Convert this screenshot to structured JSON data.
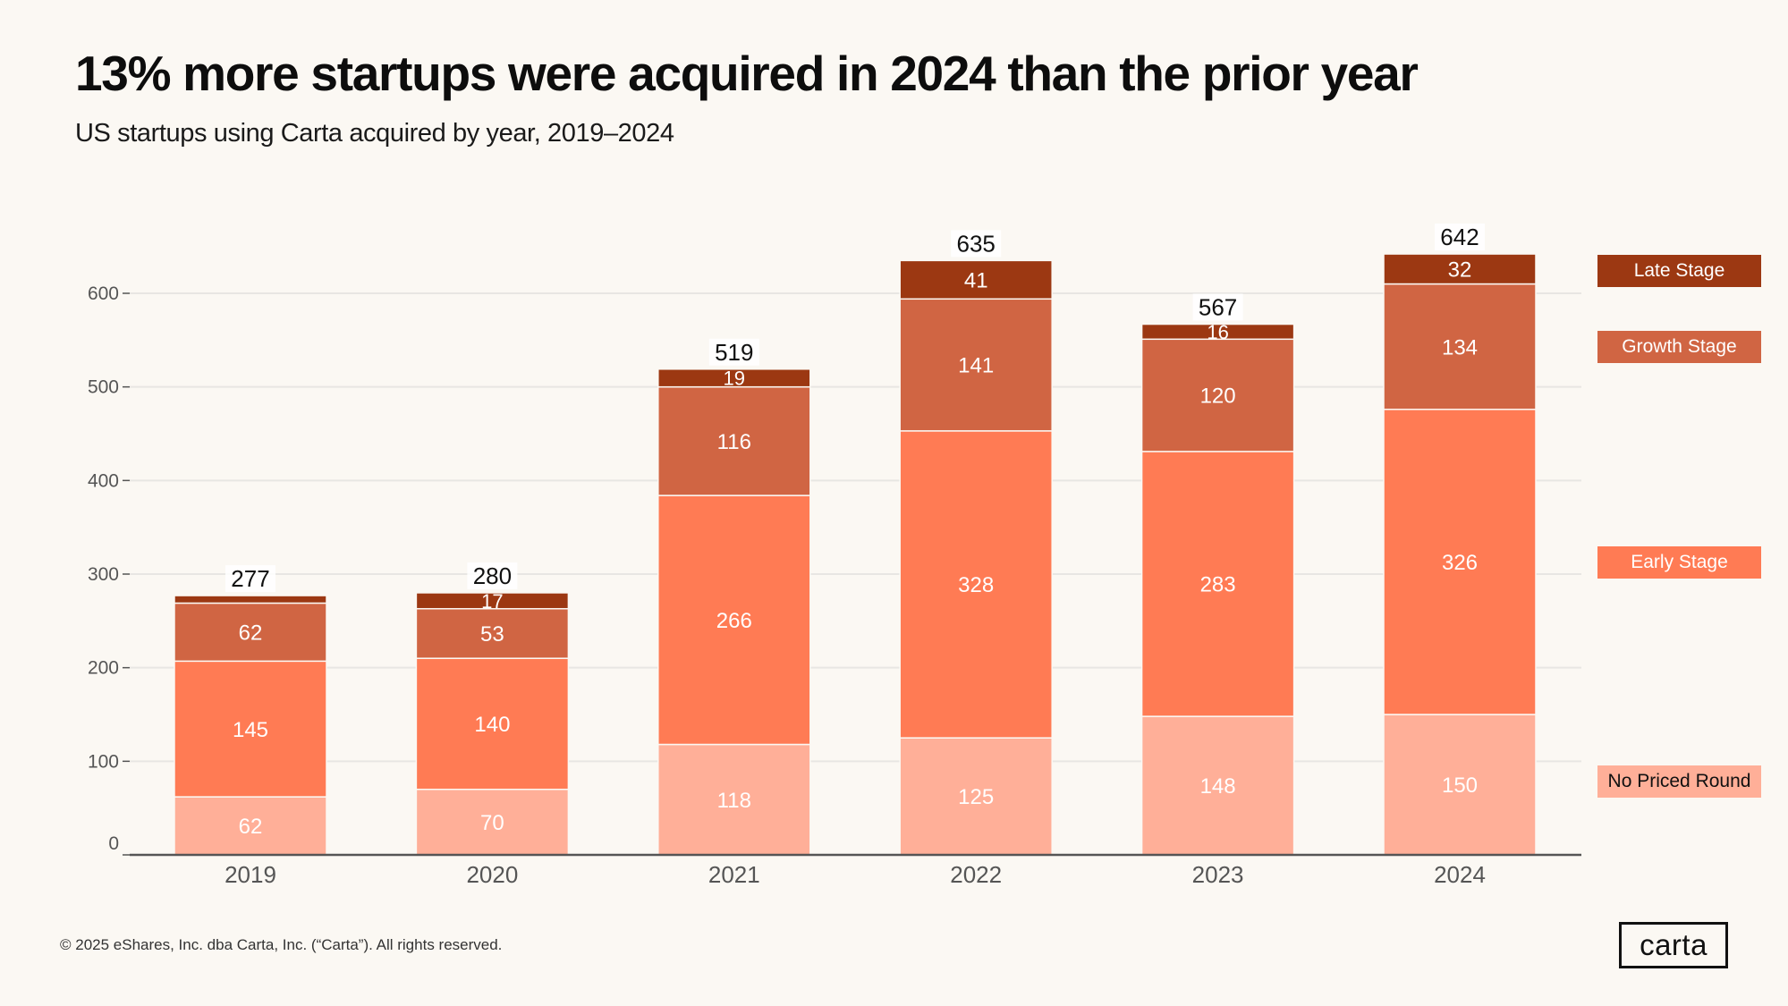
{
  "header": {
    "title": "13% more startups were acquired in 2024 than the prior year",
    "subtitle": "US startups using Carta acquired by year, 2019–2024"
  },
  "legend": [
    {
      "label": "Late Stage",
      "color": "#9C3812",
      "text_color": "#FFFFFF"
    },
    {
      "label": "Growth Stage",
      "color": "#D06543",
      "text_color": "#FFFFFF"
    },
    {
      "label": "Early Stage",
      "color": "#FF7B54",
      "text_color": "#FFFFFF"
    },
    {
      "label": "No Priced Round",
      "color": "#FFAF98",
      "text_color": "#111111"
    }
  ],
  "footer": {
    "copyright": "© 2025 eShares, Inc. dba Carta, Inc. (“Carta”). All rights reserved.",
    "logo": "carta"
  },
  "chart_data": {
    "type": "bar",
    "stacked": true,
    "title": "13% more startups were acquired in 2024 than the prior year",
    "subtitle": "US startups using Carta acquired by year, 2019–2024",
    "xlabel": "",
    "ylabel": "",
    "categories": [
      "2019",
      "2020",
      "2021",
      "2022",
      "2023",
      "2024"
    ],
    "series": [
      {
        "name": "No Priced Round",
        "color": "#FFAF98",
        "values": [
          62,
          70,
          118,
          125,
          148,
          150
        ],
        "show_labels": [
          true,
          true,
          true,
          true,
          true,
          true
        ]
      },
      {
        "name": "Early Stage",
        "color": "#FF7B54",
        "values": [
          145,
          140,
          266,
          328,
          283,
          326
        ],
        "show_labels": [
          true,
          true,
          true,
          true,
          true,
          true
        ]
      },
      {
        "name": "Growth Stage",
        "color": "#D06543",
        "values": [
          62,
          53,
          116,
          141,
          120,
          134
        ],
        "show_labels": [
          true,
          true,
          true,
          true,
          true,
          true
        ]
      },
      {
        "name": "Late Stage",
        "color": "#9C3812",
        "values": [
          8,
          17,
          19,
          41,
          16,
          32
        ],
        "show_labels": [
          false,
          true,
          true,
          true,
          true,
          true
        ]
      }
    ],
    "totals": [
      277,
      280,
      519,
      635,
      567,
      642
    ],
    "yticks": [
      0,
      100,
      200,
      300,
      400,
      500,
      600
    ],
    "ylim": [
      0,
      600
    ],
    "grid": true,
    "legend_position": "right"
  }
}
